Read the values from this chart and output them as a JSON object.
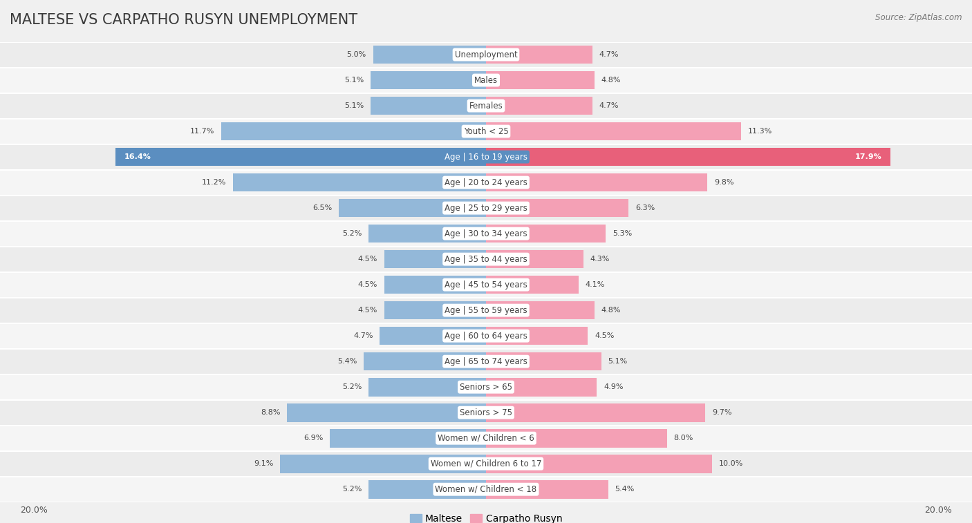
{
  "title": "MALTESE VS CARPATHO RUSYN UNEMPLOYMENT",
  "source": "Source: ZipAtlas.com",
  "categories": [
    "Unemployment",
    "Males",
    "Females",
    "Youth < 25",
    "Age | 16 to 19 years",
    "Age | 20 to 24 years",
    "Age | 25 to 29 years",
    "Age | 30 to 34 years",
    "Age | 35 to 44 years",
    "Age | 45 to 54 years",
    "Age | 55 to 59 years",
    "Age | 60 to 64 years",
    "Age | 65 to 74 years",
    "Seniors > 65",
    "Seniors > 75",
    "Women w/ Children < 6",
    "Women w/ Children 6 to 17",
    "Women w/ Children < 18"
  ],
  "maltese": [
    5.0,
    5.1,
    5.1,
    11.7,
    16.4,
    11.2,
    6.5,
    5.2,
    4.5,
    4.5,
    4.5,
    4.7,
    5.4,
    5.2,
    8.8,
    6.9,
    9.1,
    5.2
  ],
  "carpatho_rusyn": [
    4.7,
    4.8,
    4.7,
    11.3,
    17.9,
    9.8,
    6.3,
    5.3,
    4.3,
    4.1,
    4.8,
    4.5,
    5.1,
    4.9,
    9.7,
    8.0,
    10.0,
    5.4
  ],
  "maltese_color": "#93b8d9",
  "carpatho_rusyn_color": "#f4a0b5",
  "highlight_maltese_color": "#5b8ec0",
  "highlight_carpatho_rusyn_color": "#e8607a",
  "row_bg_odd": "#ececec",
  "row_bg_even": "#f5f5f5",
  "row_separator": "#ffffff",
  "background_color": "#f0f0f0",
  "max_value": 20.0,
  "title_fontsize": 15,
  "label_fontsize": 8.5,
  "value_fontsize": 8.0,
  "legend_fontsize": 10,
  "highlight_rows": [
    4
  ]
}
